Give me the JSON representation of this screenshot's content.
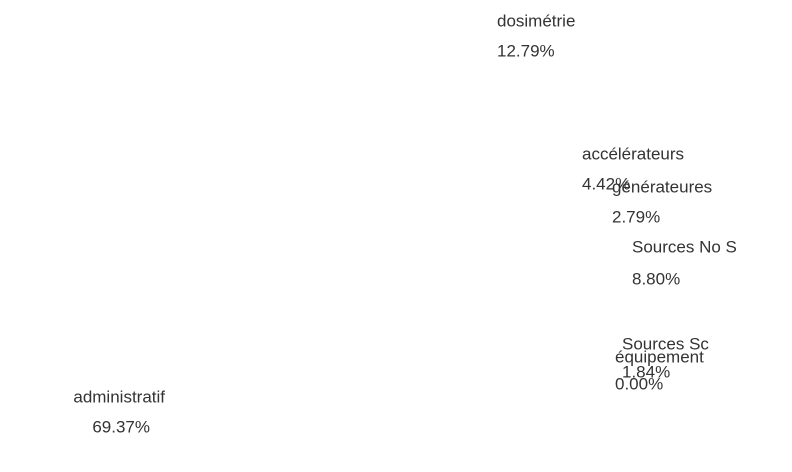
{
  "chart_data": {
    "type": "pie",
    "categories": [
      "dosimétrie",
      "accélérateurs",
      "générateures",
      "Sources No S",
      "Sources Sc",
      "équipement",
      "administratif"
    ],
    "values": [
      12.79,
      4.42,
      2.79,
      8.8,
      1.84,
      0.0,
      69.37
    ],
    "value_labels": [
      "12.79%",
      "4.42%",
      "2.79%",
      "8.80%",
      "1.84%",
      "0.00%",
      "69.37%"
    ],
    "colors": [
      "#ff3333",
      "#44ee44",
      "#5555ee",
      "#ffff00",
      "#ff55ff",
      "#33cccc",
      "#ffc02e"
    ],
    "explode": [
      0
    ]
  }
}
